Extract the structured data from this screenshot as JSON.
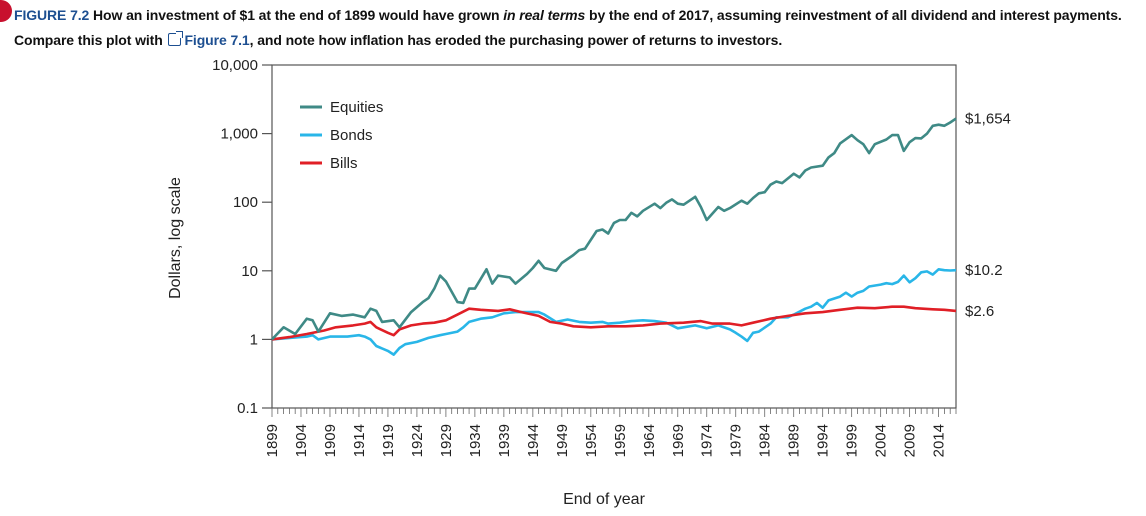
{
  "caption": {
    "figure_number": "FIGURE 7.2",
    "text_before_em": " How an investment of $1 at the end of 1899 would have grown ",
    "emphasis": "in real terms",
    "text_after_em": " by the end of 2017, assuming reinvestment of all dividend and interest payments. Compare this plot with ",
    "link_text": "Figure 7.1",
    "text_end": ", and note how inflation has eroded the purchasing power of returns to investors."
  },
  "chart_data": {
    "type": "line",
    "xlabel": "End of year",
    "ylabel": "Dollars, log scale",
    "y_scale": "log",
    "ylim": [
      0.1,
      10000
    ],
    "xlim": [
      1899,
      2017
    ],
    "y_ticks": [
      0.1,
      1,
      10,
      100,
      1000,
      10000
    ],
    "y_tick_labels": [
      "0.1",
      "1",
      "10",
      "100",
      "1,000",
      "10,000"
    ],
    "x_tick_labels": [
      "1899",
      "1904",
      "1909",
      "1914",
      "1919",
      "1924",
      "1929",
      "1934",
      "1939",
      "1944",
      "1949",
      "1954",
      "1959",
      "1964",
      "1969",
      "1974",
      "1979",
      "1984",
      "1989",
      "1994",
      "1999",
      "2004",
      "2009",
      "2014"
    ],
    "grid": false,
    "legend": "top-left",
    "series": [
      {
        "name": "Equities",
        "color": "#3f8a86",
        "end_label": "$1,654",
        "points": [
          [
            1899,
            1
          ],
          [
            1901,
            1.5
          ],
          [
            1903,
            1.2
          ],
          [
            1905,
            2
          ],
          [
            1906,
            1.9
          ],
          [
            1907,
            1.3
          ],
          [
            1909,
            2.4
          ],
          [
            1911,
            2.2
          ],
          [
            1913,
            2.3
          ],
          [
            1915,
            2.1
          ],
          [
            1916,
            2.8
          ],
          [
            1917,
            2.6
          ],
          [
            1918,
            1.8
          ],
          [
            1920,
            1.9
          ],
          [
            1921,
            1.5
          ],
          [
            1923,
            2.5
          ],
          [
            1925,
            3.5
          ],
          [
            1926,
            4
          ],
          [
            1927,
            5.5
          ],
          [
            1928,
            8.5
          ],
          [
            1929,
            7
          ],
          [
            1931,
            3.5
          ],
          [
            1932,
            3.4
          ],
          [
            1933,
            5.5
          ],
          [
            1934,
            5.5
          ],
          [
            1936,
            10.5
          ],
          [
            1937,
            6.5
          ],
          [
            1938,
            8.5
          ],
          [
            1940,
            8
          ],
          [
            1941,
            6.5
          ],
          [
            1943,
            9
          ],
          [
            1944,
            11
          ],
          [
            1945,
            14
          ],
          [
            1946,
            11
          ],
          [
            1948,
            10
          ],
          [
            1949,
            13
          ],
          [
            1951,
            17
          ],
          [
            1952,
            20
          ],
          [
            1953,
            21
          ],
          [
            1955,
            38
          ],
          [
            1956,
            40
          ],
          [
            1957,
            35
          ],
          [
            1958,
            50
          ],
          [
            1959,
            55
          ],
          [
            1960,
            55
          ],
          [
            1961,
            70
          ],
          [
            1962,
            62
          ],
          [
            1963,
            75
          ],
          [
            1965,
            95
          ],
          [
            1966,
            82
          ],
          [
            1967,
            98
          ],
          [
            1968,
            110
          ],
          [
            1969,
            95
          ],
          [
            1970,
            92
          ],
          [
            1972,
            120
          ],
          [
            1973,
            85
          ],
          [
            1974,
            55
          ],
          [
            1976,
            85
          ],
          [
            1977,
            75
          ],
          [
            1978,
            82
          ],
          [
            1980,
            105
          ],
          [
            1981,
            95
          ],
          [
            1982,
            115
          ],
          [
            1983,
            135
          ],
          [
            1984,
            140
          ],
          [
            1985,
            180
          ],
          [
            1986,
            200
          ],
          [
            1987,
            190
          ],
          [
            1989,
            260
          ],
          [
            1990,
            230
          ],
          [
            1991,
            290
          ],
          [
            1992,
            320
          ],
          [
            1994,
            340
          ],
          [
            1995,
            450
          ],
          [
            1996,
            520
          ],
          [
            1997,
            720
          ],
          [
            1999,
            950
          ],
          [
            2000,
            800
          ],
          [
            2001,
            700
          ],
          [
            2002,
            520
          ],
          [
            2003,
            700
          ],
          [
            2005,
            820
          ],
          [
            2006,
            950
          ],
          [
            2007,
            950
          ],
          [
            2008,
            560
          ],
          [
            2009,
            750
          ],
          [
            2010,
            860
          ],
          [
            2011,
            850
          ],
          [
            2012,
            1000
          ],
          [
            2013,
            1300
          ],
          [
            2014,
            1350
          ],
          [
            2015,
            1300
          ],
          [
            2016,
            1450
          ],
          [
            2017,
            1654
          ]
        ]
      },
      {
        "name": "Bonds",
        "color": "#29b6e8",
        "end_label": "$10.2",
        "points": [
          [
            1899,
            1
          ],
          [
            1902,
            1.05
          ],
          [
            1905,
            1.1
          ],
          [
            1906,
            1.15
          ],
          [
            1907,
            1.0
          ],
          [
            1909,
            1.1
          ],
          [
            1912,
            1.1
          ],
          [
            1914,
            1.15
          ],
          [
            1915,
            1.1
          ],
          [
            1916,
            1.0
          ],
          [
            1917,
            0.8
          ],
          [
            1919,
            0.68
          ],
          [
            1920,
            0.6
          ],
          [
            1921,
            0.75
          ],
          [
            1922,
            0.85
          ],
          [
            1924,
            0.92
          ],
          [
            1926,
            1.05
          ],
          [
            1928,
            1.15
          ],
          [
            1929,
            1.2
          ],
          [
            1931,
            1.3
          ],
          [
            1932,
            1.5
          ],
          [
            1933,
            1.8
          ],
          [
            1935,
            2.0
          ],
          [
            1937,
            2.1
          ],
          [
            1939,
            2.4
          ],
          [
            1941,
            2.5
          ],
          [
            1943,
            2.5
          ],
          [
            1945,
            2.5
          ],
          [
            1946,
            2.3
          ],
          [
            1948,
            1.8
          ],
          [
            1950,
            1.95
          ],
          [
            1952,
            1.8
          ],
          [
            1954,
            1.75
          ],
          [
            1956,
            1.8
          ],
          [
            1957,
            1.7
          ],
          [
            1959,
            1.75
          ],
          [
            1961,
            1.85
          ],
          [
            1963,
            1.9
          ],
          [
            1965,
            1.85
          ],
          [
            1967,
            1.75
          ],
          [
            1968,
            1.6
          ],
          [
            1969,
            1.45
          ],
          [
            1970,
            1.5
          ],
          [
            1972,
            1.6
          ],
          [
            1974,
            1.45
          ],
          [
            1976,
            1.6
          ],
          [
            1978,
            1.4
          ],
          [
            1979,
            1.25
          ],
          [
            1980,
            1.1
          ],
          [
            1981,
            0.95
          ],
          [
            1982,
            1.25
          ],
          [
            1983,
            1.3
          ],
          [
            1985,
            1.7
          ],
          [
            1986,
            2.1
          ],
          [
            1988,
            2.1
          ],
          [
            1989,
            2.3
          ],
          [
            1991,
            2.8
          ],
          [
            1992,
            3.0
          ],
          [
            1993,
            3.4
          ],
          [
            1994,
            2.9
          ],
          [
            1995,
            3.7
          ],
          [
            1997,
            4.2
          ],
          [
            1998,
            4.8
          ],
          [
            1999,
            4.2
          ],
          [
            2000,
            4.8
          ],
          [
            2001,
            5.1
          ],
          [
            2002,
            5.9
          ],
          [
            2004,
            6.3
          ],
          [
            2005,
            6.6
          ],
          [
            2006,
            6.4
          ],
          [
            2007,
            6.9
          ],
          [
            2008,
            8.5
          ],
          [
            2009,
            6.8
          ],
          [
            2010,
            7.8
          ],
          [
            2011,
            9.5
          ],
          [
            2012,
            9.8
          ],
          [
            2013,
            8.8
          ],
          [
            2014,
            10.5
          ],
          [
            2015,
            10.2
          ],
          [
            2016,
            10.1
          ],
          [
            2017,
            10.2
          ]
        ]
      },
      {
        "name": "Bills",
        "color": "#e01f26",
        "end_label": "$2.6",
        "points": [
          [
            1899,
            1
          ],
          [
            1902,
            1.08
          ],
          [
            1905,
            1.2
          ],
          [
            1908,
            1.35
          ],
          [
            1910,
            1.5
          ],
          [
            1913,
            1.6
          ],
          [
            1915,
            1.7
          ],
          [
            1916,
            1.8
          ],
          [
            1917,
            1.5
          ],
          [
            1919,
            1.25
          ],
          [
            1920,
            1.15
          ],
          [
            1921,
            1.4
          ],
          [
            1923,
            1.6
          ],
          [
            1925,
            1.7
          ],
          [
            1927,
            1.75
          ],
          [
            1929,
            1.9
          ],
          [
            1931,
            2.3
          ],
          [
            1933,
            2.8
          ],
          [
            1935,
            2.7
          ],
          [
            1938,
            2.6
          ],
          [
            1940,
            2.75
          ],
          [
            1942,
            2.5
          ],
          [
            1945,
            2.2
          ],
          [
            1947,
            1.8
          ],
          [
            1949,
            1.7
          ],
          [
            1951,
            1.55
          ],
          [
            1954,
            1.5
          ],
          [
            1957,
            1.55
          ],
          [
            1960,
            1.55
          ],
          [
            1963,
            1.6
          ],
          [
            1966,
            1.7
          ],
          [
            1970,
            1.75
          ],
          [
            1973,
            1.85
          ],
          [
            1975,
            1.7
          ],
          [
            1978,
            1.7
          ],
          [
            1980,
            1.6
          ],
          [
            1982,
            1.75
          ],
          [
            1985,
            2.0
          ],
          [
            1988,
            2.2
          ],
          [
            1991,
            2.4
          ],
          [
            1994,
            2.5
          ],
          [
            1997,
            2.7
          ],
          [
            2000,
            2.9
          ],
          [
            2003,
            2.85
          ],
          [
            2006,
            3.0
          ],
          [
            2008,
            3.0
          ],
          [
            2010,
            2.85
          ],
          [
            2013,
            2.75
          ],
          [
            2015,
            2.7
          ],
          [
            2017,
            2.6
          ]
        ]
      }
    ]
  }
}
